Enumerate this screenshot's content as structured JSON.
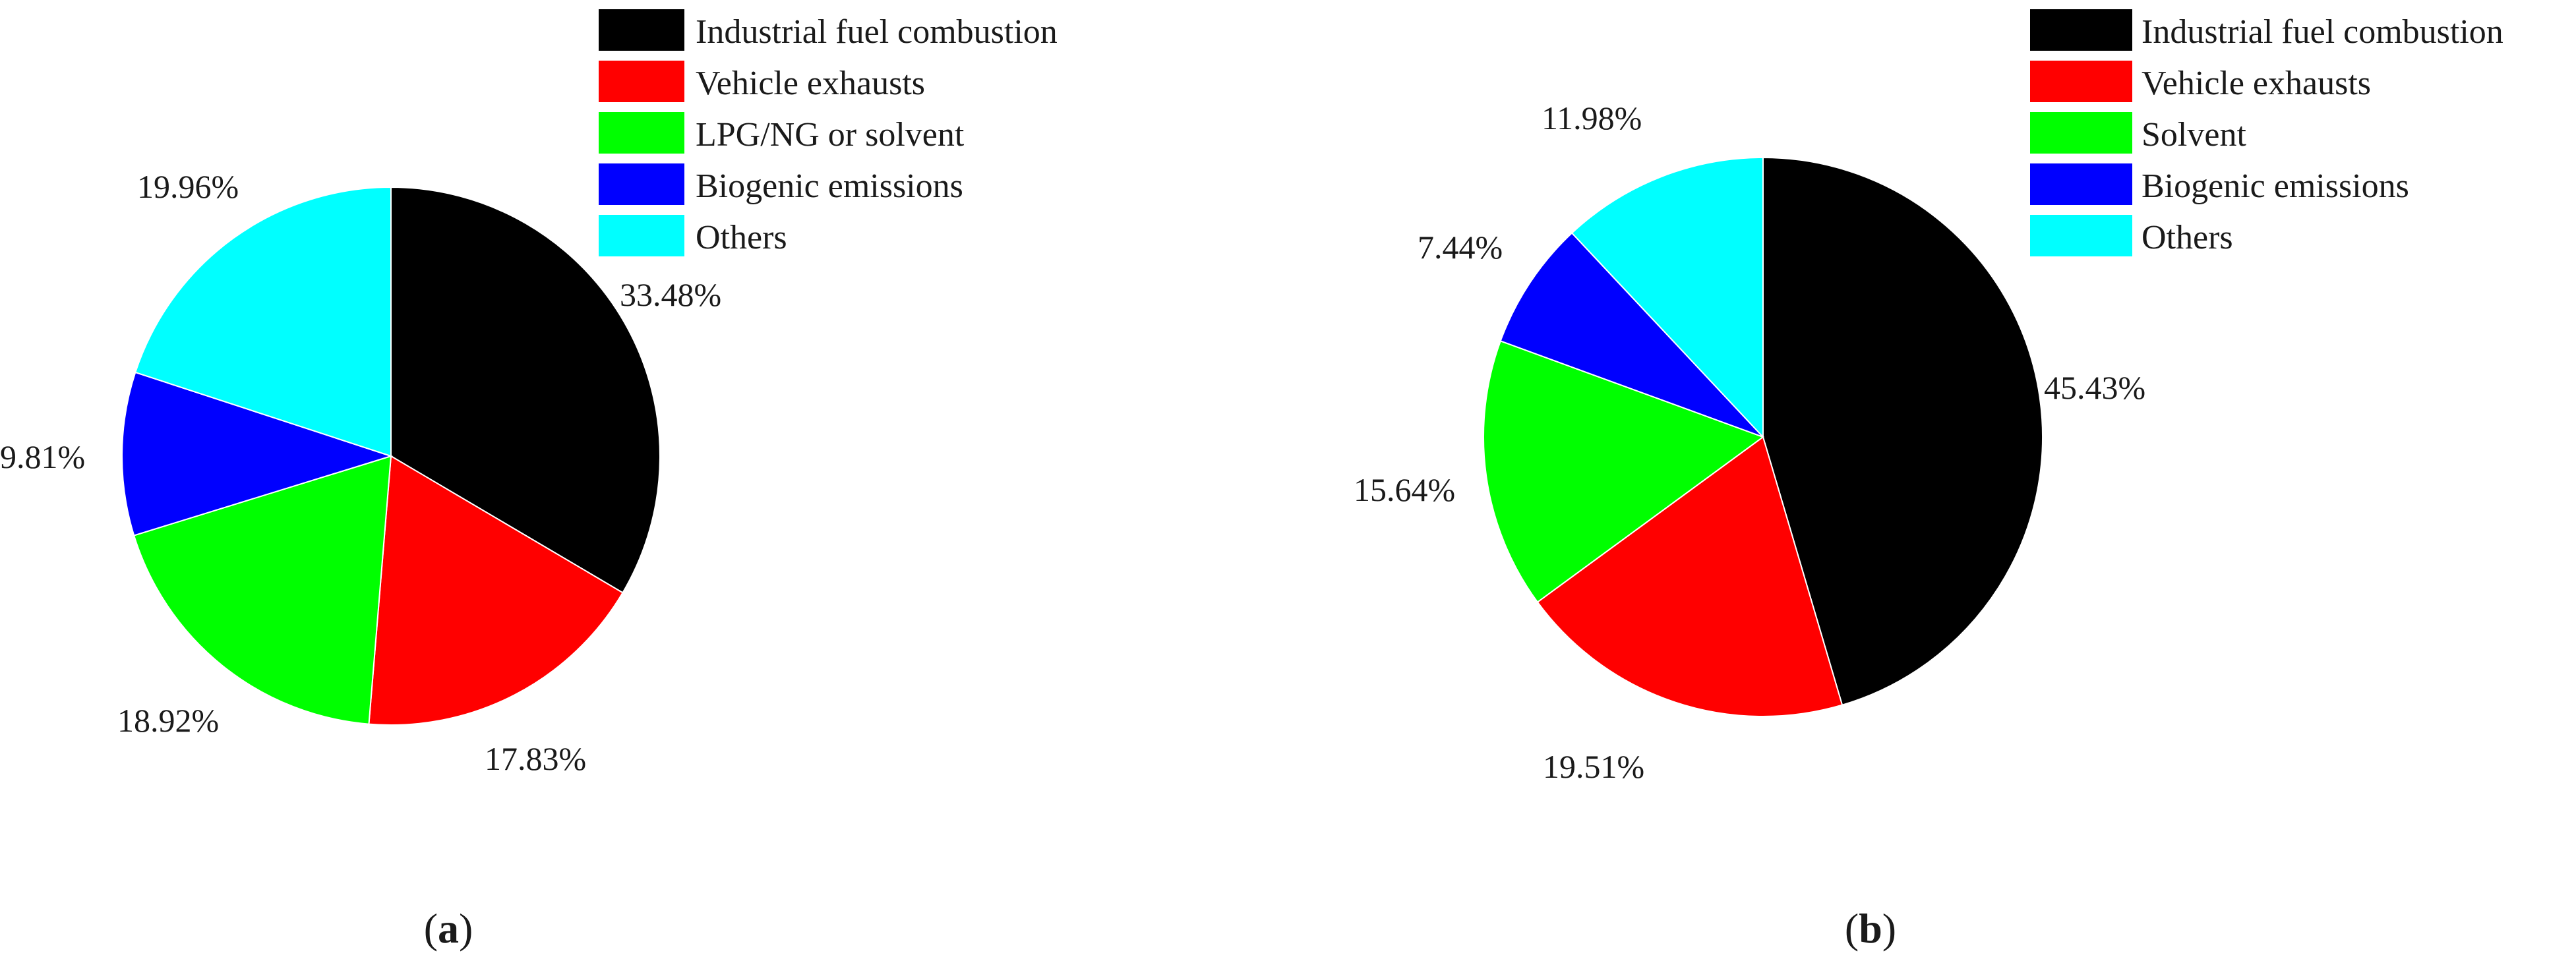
{
  "chart_data": [
    {
      "type": "pie",
      "panel_label": "a",
      "legend_placement": "top-right",
      "categories": [
        "Industrial fuel combustion",
        "Vehicle exhausts",
        "LPG/NG or solvent",
        "Biogenic emissions",
        "Others"
      ],
      "values": [
        33.48,
        17.83,
        18.92,
        9.81,
        19.96
      ],
      "value_labels": [
        "33.48%",
        "17.83%",
        "18.92%",
        "9.81%",
        "19.96%"
      ],
      "colors": [
        "#000000",
        "#ff0000",
        "#00ff00",
        "#0000ff",
        "#00ffff"
      ]
    },
    {
      "type": "pie",
      "panel_label": "b",
      "legend_placement": "top-right",
      "categories": [
        "Industrial fuel combustion",
        "Vehicle exhausts",
        "Solvent",
        "Biogenic emissions",
        "Others"
      ],
      "values": [
        45.43,
        19.51,
        15.64,
        7.44,
        11.98
      ],
      "value_labels": [
        "45.43%",
        "19.51%",
        "15.64%",
        "7.44%",
        "11.98%"
      ],
      "colors": [
        "#000000",
        "#ff0000",
        "#00ff00",
        "#0000ff",
        "#00ffff"
      ]
    }
  ]
}
